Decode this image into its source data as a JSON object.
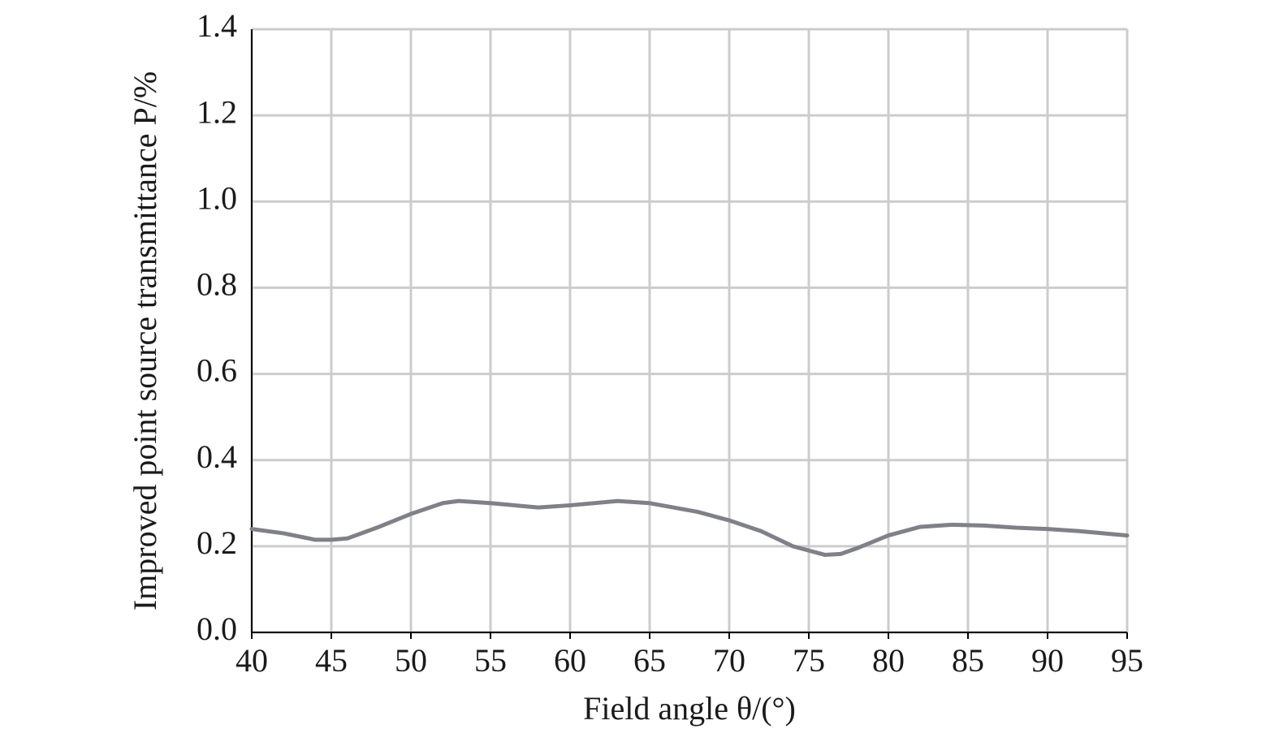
{
  "chart_data": {
    "type": "line",
    "xlabel": "Field angle θ/(°)",
    "ylabel": "Improved point source transmittance P/%",
    "x": [
      40,
      42,
      44,
      45,
      46,
      48,
      50,
      52,
      53,
      55,
      58,
      60,
      63,
      65,
      68,
      70,
      72,
      74,
      76,
      77,
      78,
      80,
      82,
      84,
      86,
      88,
      90,
      92,
      95
    ],
    "series": [
      {
        "color": "#808088",
        "values": [
          0.24,
          0.23,
          0.215,
          0.215,
          0.218,
          0.245,
          0.275,
          0.3,
          0.305,
          0.3,
          0.29,
          0.295,
          0.305,
          0.3,
          0.28,
          0.26,
          0.235,
          0.2,
          0.18,
          0.182,
          0.195,
          0.225,
          0.245,
          0.25,
          0.248,
          0.243,
          0.24,
          0.235,
          0.225
        ]
      }
    ],
    "xlim": [
      40,
      95
    ],
    "xticks": [
      40,
      45,
      50,
      55,
      60,
      65,
      70,
      75,
      80,
      85,
      90,
      95
    ],
    "ylim": [
      0,
      1.4
    ],
    "yticks": [
      {
        "value": 0,
        "label": "0.0"
      },
      0.2,
      0.4,
      0.6,
      0.8,
      {
        "value": 1,
        "label": "1.0"
      },
      1.2,
      1.4
    ],
    "grid": true
  }
}
